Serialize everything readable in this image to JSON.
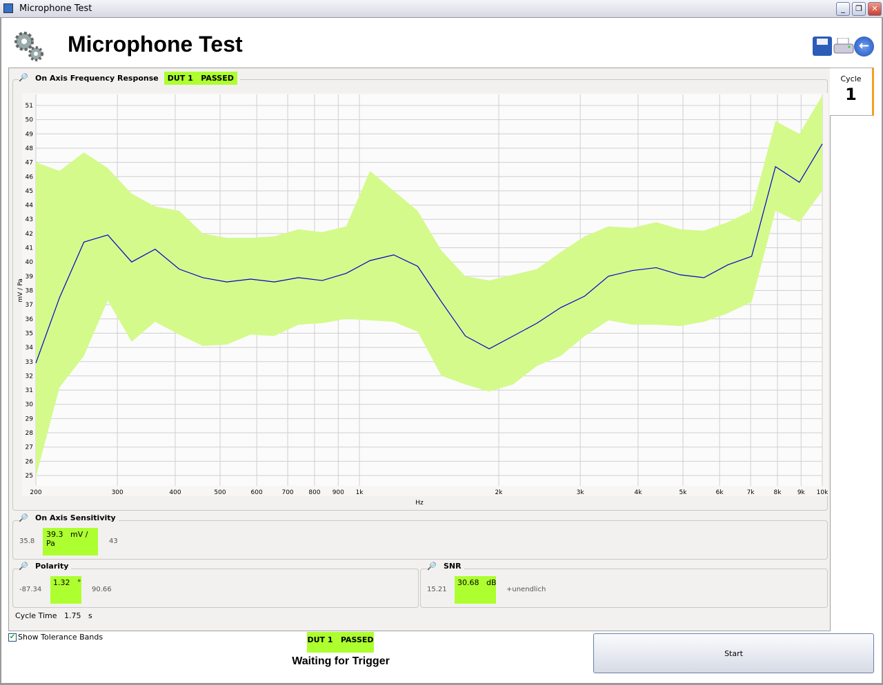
{
  "window": {
    "title": "Microphone Test"
  },
  "header": {
    "title": "Microphone Test",
    "icons": [
      "gears-icon",
      "save-icon",
      "print-icon",
      "back-icon"
    ]
  },
  "cycle": {
    "label": "Cycle",
    "value": "1"
  },
  "freq_panel": {
    "title": "On Axis Frequency Response",
    "badge": "DUT 1   PASSED"
  },
  "sensitivity": {
    "title": "On Axis Sensitivity",
    "min": "35.8",
    "value": "39.3",
    "unit": "mV / Pa",
    "max": "43"
  },
  "polarity": {
    "title": "Polarity",
    "min": "-87.34",
    "value": "1.32",
    "unit": "°",
    "max": "90.66"
  },
  "snr": {
    "title": "SNR",
    "min": "15.21",
    "value": "30.68",
    "unit": "dB",
    "max": "+unendlich"
  },
  "cycle_time": {
    "label": "Cycle Time",
    "value": "1.75",
    "unit": "s"
  },
  "footer": {
    "checkbox_label": "Show Tolerance Bands",
    "checked": true,
    "badge": "DUT 1   PASSED",
    "status": "Waiting for Trigger",
    "start": "Start"
  },
  "colors": {
    "pass": "#adff2f",
    "band": "#d4fa8c",
    "line": "#0000cc"
  },
  "chart_data": {
    "type": "line",
    "xlabel": "Hz",
    "ylabel": "mV / Pa",
    "xscale": "log",
    "xlim": [
      200,
      10000
    ],
    "ylim": [
      25,
      51
    ],
    "grid": true,
    "x_ticks": [
      200,
      300,
      400,
      500,
      600,
      700,
      800,
      900,
      1000,
      2000,
      3000,
      4000,
      5000,
      6000,
      7000,
      8000,
      9000,
      10000
    ],
    "x_tick_labels": [
      "200",
      "300",
      "400",
      "500",
      "600",
      "700",
      "800",
      "900",
      "1k",
      "2k",
      "3k",
      "4k",
      "5k",
      "6k",
      "7k",
      "8k",
      "9k",
      "10k"
    ],
    "y_ticks": [
      25,
      26,
      27,
      28,
      29,
      30,
      31,
      32,
      33,
      34,
      35,
      36,
      37,
      38,
      39,
      40,
      41,
      42,
      43,
      44,
      45,
      46,
      47,
      48,
      49,
      50,
      51
    ],
    "x": [
      200,
      225,
      254,
      286,
      322,
      362,
      408,
      459,
      517,
      582,
      655,
      738,
      831,
      936,
      1054,
      1186,
      1336,
      1504,
      1694,
      1907,
      2148,
      2418,
      2723,
      3066,
      3452,
      3888,
      4377,
      4929,
      5550,
      6249,
      7037,
      7923,
      8922,
      10000
    ],
    "series": [
      {
        "role": "measurement",
        "values": [
          32.9,
          37.5,
          41.4,
          41.9,
          40.0,
          40.9,
          39.5,
          38.9,
          38.6,
          38.8,
          38.6,
          38.9,
          38.7,
          39.2,
          40.1,
          40.5,
          39.7,
          37.2,
          34.8,
          33.9,
          34.8,
          35.7,
          36.8,
          37.6,
          39.0,
          39.4,
          39.6,
          39.1,
          38.9,
          39.8,
          40.4,
          46.7,
          45.6,
          48.3
        ]
      },
      {
        "role": "upper-tolerance",
        "values": [
          47.0,
          46.4,
          47.7,
          46.6,
          44.8,
          43.9,
          43.6,
          42.0,
          41.7,
          41.7,
          41.8,
          42.3,
          42.1,
          42.5,
          46.4,
          45.0,
          43.6,
          40.8,
          39.0,
          38.7,
          39.1,
          39.5,
          40.7,
          41.8,
          42.5,
          42.4,
          42.8,
          42.3,
          42.2,
          42.8,
          43.6,
          49.9,
          49.0,
          51.7
        ]
      },
      {
        "role": "lower-tolerance",
        "values": [
          24.9,
          31.2,
          33.4,
          37.3,
          34.4,
          35.8,
          34.9,
          34.1,
          34.2,
          34.9,
          34.8,
          35.6,
          35.7,
          36.0,
          35.9,
          35.8,
          35.1,
          32.0,
          31.4,
          30.9,
          31.4,
          32.7,
          33.4,
          34.8,
          35.9,
          35.6,
          35.6,
          35.5,
          35.8,
          36.4,
          37.2,
          43.6,
          42.8,
          45.0
        ]
      }
    ]
  }
}
